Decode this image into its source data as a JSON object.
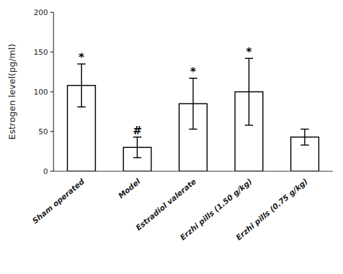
{
  "chart_data": {
    "type": "bar",
    "categories": [
      "Sham operated",
      "Model",
      "Estradiol valerate",
      "Erzhi pills (1.50 g/kg)",
      "Erzhi pills (0.75 g/kg)"
    ],
    "values": [
      108,
      30,
      85,
      100,
      43
    ],
    "errors": [
      27,
      13,
      32,
      42,
      10
    ],
    "significance": [
      "*",
      "#",
      "*",
      "*",
      null
    ],
    "ylabel": "Estrogen level(pg/ml)",
    "ylim": [
      0,
      200
    ],
    "yticks": [
      0,
      50,
      100,
      150,
      200
    ],
    "color": "#ffffff",
    "grid": false
  }
}
